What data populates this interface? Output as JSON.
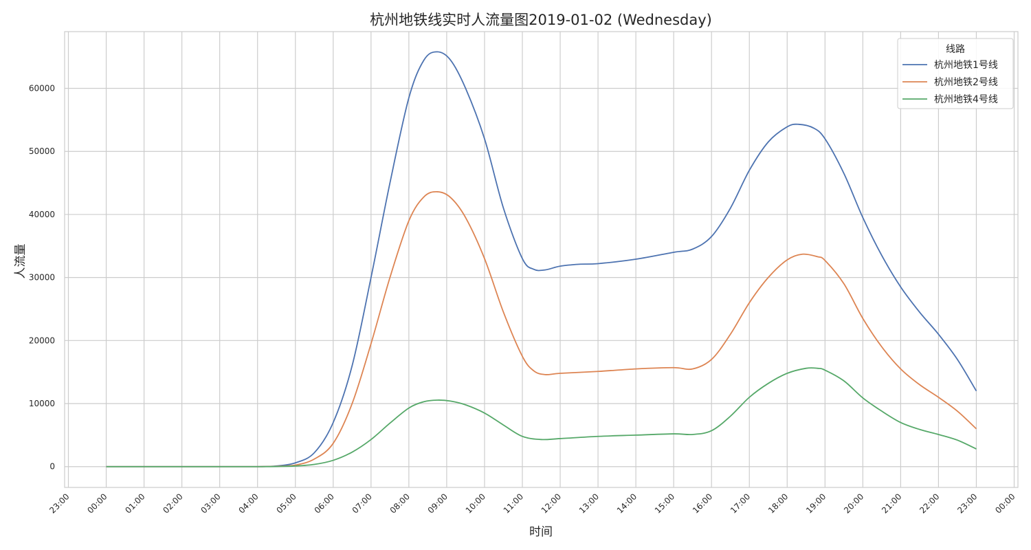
{
  "chart_data": {
    "type": "line",
    "title": "杭州地铁线实时人流量图2019-01-02 (Wednesday)",
    "xlabel": "时间",
    "ylabel": "人流量",
    "x_unit": "hour",
    "x_tick_labels": [
      "23:00",
      "00:00",
      "01:00",
      "02:00",
      "03:00",
      "04:00",
      "05:00",
      "06:00",
      "07:00",
      "08:00",
      "09:00",
      "10:00",
      "11:00",
      "12:00",
      "13:00",
      "14:00",
      "15:00",
      "16:00",
      "17:00",
      "18:00",
      "19:00",
      "20:00",
      "21:00",
      "22:00",
      "23:00",
      "00:00"
    ],
    "x_tick_values": [
      -1,
      0,
      1,
      2,
      3,
      4,
      5,
      6,
      7,
      8,
      9,
      10,
      11,
      12,
      13,
      14,
      15,
      16,
      17,
      18,
      19,
      20,
      21,
      22,
      23,
      24
    ],
    "xlim": [
      -1.1,
      24.1
    ],
    "ylim": [
      -3300,
      69000
    ],
    "y_ticks": [
      0,
      10000,
      20000,
      30000,
      40000,
      50000,
      60000
    ],
    "grid": true,
    "legend": {
      "title": "线路",
      "position": "top-right"
    },
    "series": [
      {
        "name": "杭州地铁1号线",
        "color": "#4c72b0",
        "points": [
          [
            0,
            0
          ],
          [
            1,
            0
          ],
          [
            2,
            0
          ],
          [
            3,
            0
          ],
          [
            4,
            0
          ],
          [
            4.5,
            100
          ],
          [
            5,
            600
          ],
          [
            5.5,
            2200
          ],
          [
            6,
            7000
          ],
          [
            6.5,
            16000
          ],
          [
            7,
            30000
          ],
          [
            7.5,
            45000
          ],
          [
            8,
            58500
          ],
          [
            8.4,
            64500
          ],
          [
            8.75,
            65800
          ],
          [
            9.1,
            64500
          ],
          [
            9.5,
            60000
          ],
          [
            10,
            52000
          ],
          [
            10.5,
            41000
          ],
          [
            11,
            33000
          ],
          [
            11.3,
            31300
          ],
          [
            11.6,
            31200
          ],
          [
            12,
            31800
          ],
          [
            12.5,
            32100
          ],
          [
            13,
            32200
          ],
          [
            14,
            32900
          ],
          [
            15,
            34000
          ],
          [
            15.5,
            34500
          ],
          [
            16,
            36500
          ],
          [
            16.5,
            41000
          ],
          [
            17,
            47000
          ],
          [
            17.5,
            51500
          ],
          [
            18,
            53900
          ],
          [
            18.3,
            54300
          ],
          [
            18.7,
            53700
          ],
          [
            19,
            52000
          ],
          [
            19.5,
            46500
          ],
          [
            20,
            39500
          ],
          [
            20.5,
            33500
          ],
          [
            21,
            28500
          ],
          [
            21.5,
            24500
          ],
          [
            22,
            21000
          ],
          [
            22.5,
            17000
          ],
          [
            23,
            12000
          ]
        ]
      },
      {
        "name": "杭州地铁2号线",
        "color": "#dd8452",
        "points": [
          [
            0,
            0
          ],
          [
            1,
            0
          ],
          [
            2,
            0
          ],
          [
            3,
            0
          ],
          [
            4,
            0
          ],
          [
            4.5,
            50
          ],
          [
            5,
            250
          ],
          [
            5.5,
            1200
          ],
          [
            6,
            3700
          ],
          [
            6.5,
            10000
          ],
          [
            7,
            19500
          ],
          [
            7.5,
            30000
          ],
          [
            8,
            39000
          ],
          [
            8.4,
            42800
          ],
          [
            8.75,
            43600
          ],
          [
            9.1,
            42700
          ],
          [
            9.5,
            39500
          ],
          [
            10,
            33000
          ],
          [
            10.5,
            24500
          ],
          [
            11,
            17500
          ],
          [
            11.3,
            15200
          ],
          [
            11.6,
            14600
          ],
          [
            12,
            14800
          ],
          [
            13,
            15100
          ],
          [
            14,
            15500
          ],
          [
            15,
            15700
          ],
          [
            15.5,
            15500
          ],
          [
            16,
            17000
          ],
          [
            16.5,
            21000
          ],
          [
            17,
            26000
          ],
          [
            17.5,
            30000
          ],
          [
            18,
            32800
          ],
          [
            18.4,
            33700
          ],
          [
            18.8,
            33300
          ],
          [
            19,
            32700
          ],
          [
            19.5,
            29000
          ],
          [
            20,
            23500
          ],
          [
            20.5,
            19000
          ],
          [
            21,
            15500
          ],
          [
            21.5,
            13000
          ],
          [
            22,
            11000
          ],
          [
            22.5,
            8800
          ],
          [
            23,
            6000
          ]
        ]
      },
      {
        "name": "杭州地铁4号线",
        "color": "#55a868",
        "points": [
          [
            0,
            0
          ],
          [
            1,
            0
          ],
          [
            2,
            0
          ],
          [
            3,
            0
          ],
          [
            4,
            0
          ],
          [
            4.5,
            20
          ],
          [
            5,
            100
          ],
          [
            5.5,
            350
          ],
          [
            6,
            1000
          ],
          [
            6.5,
            2300
          ],
          [
            7,
            4300
          ],
          [
            7.5,
            6900
          ],
          [
            8,
            9300
          ],
          [
            8.4,
            10300
          ],
          [
            8.75,
            10550
          ],
          [
            9.1,
            10400
          ],
          [
            9.5,
            9800
          ],
          [
            10,
            8500
          ],
          [
            10.5,
            6600
          ],
          [
            11,
            4800
          ],
          [
            11.5,
            4300
          ],
          [
            12,
            4450
          ],
          [
            13,
            4800
          ],
          [
            14,
            5000
          ],
          [
            15,
            5200
          ],
          [
            15.5,
            5100
          ],
          [
            16,
            5700
          ],
          [
            16.5,
            8000
          ],
          [
            17,
            11000
          ],
          [
            17.5,
            13200
          ],
          [
            18,
            14800
          ],
          [
            18.5,
            15600
          ],
          [
            18.8,
            15600
          ],
          [
            19,
            15300
          ],
          [
            19.5,
            13600
          ],
          [
            20,
            10900
          ],
          [
            20.5,
            8800
          ],
          [
            21,
            7000
          ],
          [
            21.5,
            5900
          ],
          [
            22,
            5100
          ],
          [
            22.5,
            4200
          ],
          [
            23,
            2800
          ]
        ]
      }
    ]
  }
}
